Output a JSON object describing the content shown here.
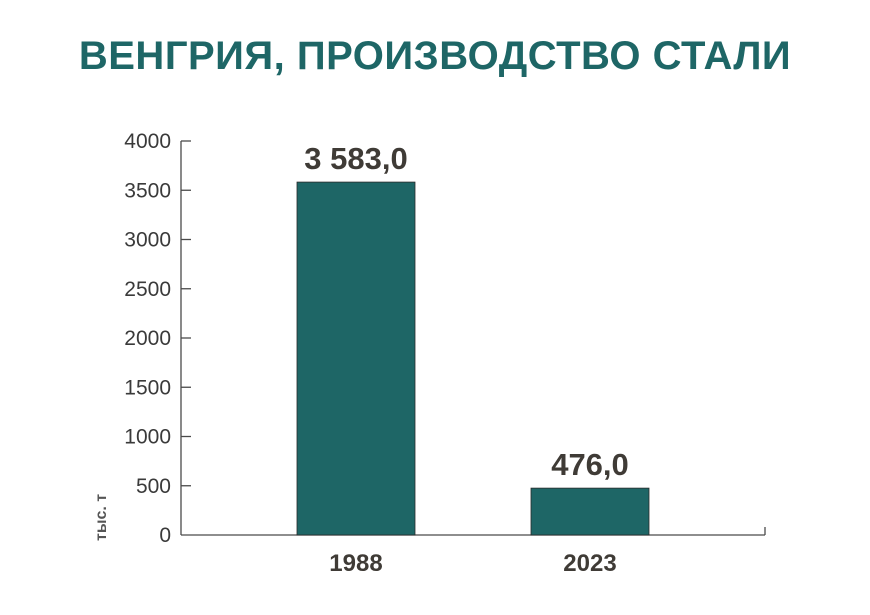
{
  "chart_data": {
    "type": "bar",
    "title": "ВЕНГРИЯ, ПРОИЗВОДСТВО СТАЛИ",
    "ylabel": "тыс. т",
    "xlabel": "",
    "categories": [
      "1988",
      "2023"
    ],
    "values": [
      3583.0,
      476.0
    ],
    "data_labels": [
      "3 583,0",
      "476,0"
    ],
    "ylim": [
      0,
      4000
    ],
    "yticks": [
      0,
      500,
      1000,
      1500,
      2000,
      2500,
      3000,
      3500,
      4000
    ],
    "ytick_labels": [
      "0",
      "500",
      "1000",
      "1500",
      "2000",
      "2500",
      "3000",
      "3500",
      "4000"
    ],
    "grid": false,
    "legend": "none",
    "colors": {
      "bar": "#1e6666",
      "title": "#1e6666",
      "axis": "#4a4a4a",
      "text": "#3f3b36"
    }
  }
}
